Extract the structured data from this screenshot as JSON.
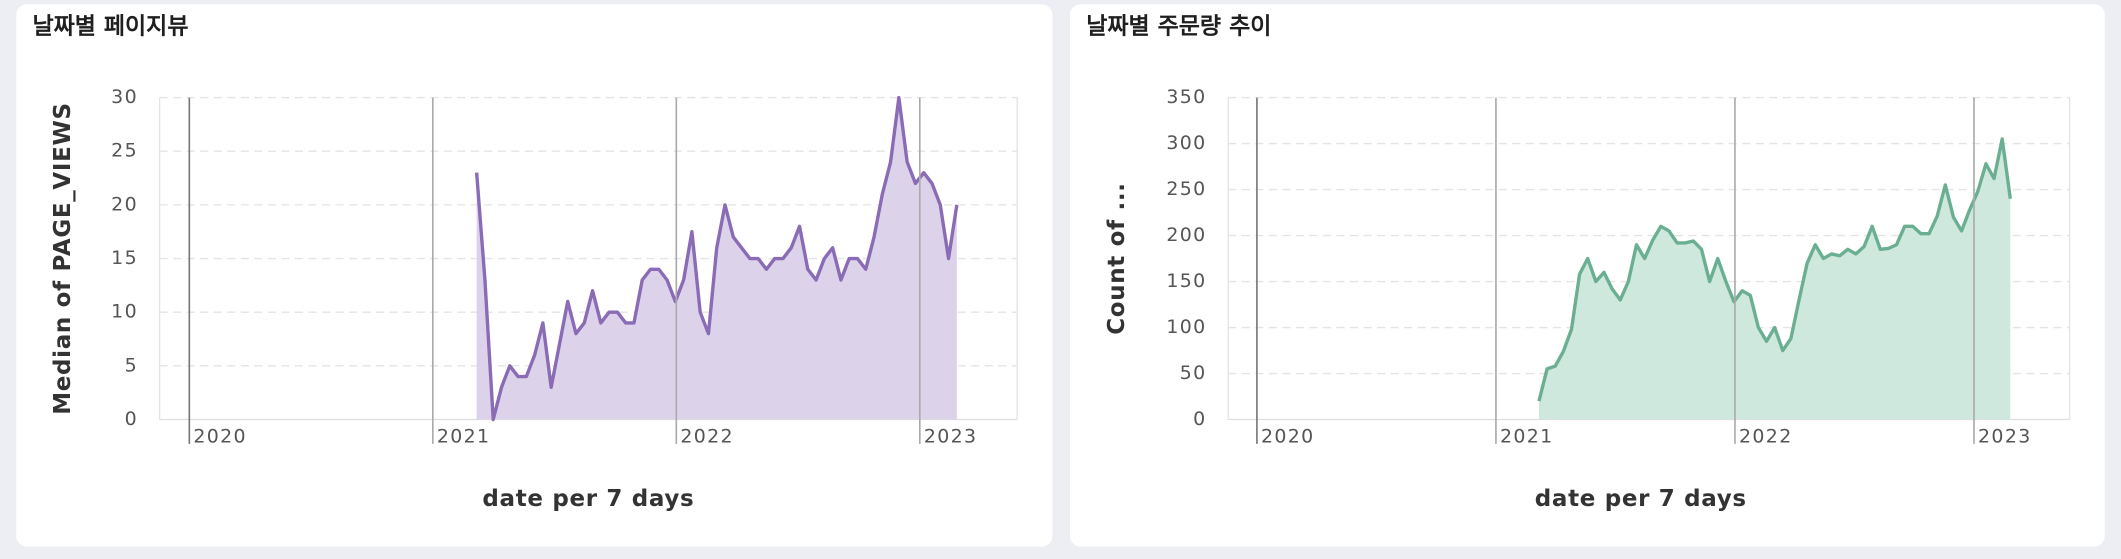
{
  "chart_data": [
    {
      "type": "area",
      "title": "날짜별 페이지뷰",
      "x_label": "date per 7 days",
      "y_label": "Median of PAGE_VIEWS",
      "color": "#8a6bb5",
      "fill_color": "#dcd3ea",
      "x": [
        2021.18,
        2021.214,
        2021.248,
        2021.282,
        2021.316,
        2021.35,
        2021.384,
        2021.418,
        2021.452,
        2021.486,
        2021.52,
        2021.554,
        2021.588,
        2021.622,
        2021.656,
        2021.69,
        2021.724,
        2021.758,
        2021.792,
        2021.826,
        2021.86,
        2021.894,
        2021.928,
        2021.962,
        2021.996,
        2022.03,
        2022.064,
        2022.098,
        2022.132,
        2022.166,
        2022.2,
        2022.234,
        2022.268,
        2022.302,
        2022.336,
        2022.37,
        2022.404,
        2022.438,
        2022.472,
        2022.506,
        2022.54,
        2022.574,
        2022.608,
        2022.642,
        2022.676,
        2022.71,
        2022.744,
        2022.778,
        2022.812,
        2022.846,
        2022.88,
        2022.914,
        2022.948,
        2022.982,
        2023.016,
        2023.05,
        2023.084,
        2023.118,
        2023.152
      ],
      "values": [
        23,
        13,
        0,
        3,
        5,
        4,
        4,
        6,
        9,
        3,
        7,
        11,
        8,
        9,
        12,
        9,
        10,
        10,
        9,
        9,
        13,
        14,
        14,
        13,
        11,
        13,
        17.5,
        10,
        8,
        16,
        20,
        17,
        16,
        15,
        15,
        14,
        15,
        15,
        16,
        18,
        14,
        13,
        15,
        16,
        13,
        15,
        15,
        14,
        17,
        21,
        24,
        30,
        24,
        22,
        23,
        22,
        20,
        15,
        20
      ],
      "xlim": [
        2019.878,
        2023.4
      ],
      "xticks": [
        2020,
        2021,
        2022,
        2023
      ],
      "ylim": [
        0,
        30
      ],
      "yticks": [
        0,
        5,
        10,
        15,
        20,
        25,
        30
      ],
      "grid": true
    },
    {
      "type": "area",
      "title": "날짜별 주문량 추이",
      "x_label": "date per 7 days",
      "y_label": "Count of ...",
      "color": "#6aaf91",
      "fill_color": "#cfe8dd",
      "x": [
        2021.18,
        2021.214,
        2021.248,
        2021.282,
        2021.316,
        2021.35,
        2021.384,
        2021.418,
        2021.452,
        2021.486,
        2021.52,
        2021.554,
        2021.588,
        2021.622,
        2021.656,
        2021.69,
        2021.724,
        2021.758,
        2021.792,
        2021.826,
        2021.86,
        2021.894,
        2021.928,
        2021.962,
        2021.996,
        2022.03,
        2022.064,
        2022.098,
        2022.132,
        2022.166,
        2022.2,
        2022.234,
        2022.268,
        2022.302,
        2022.336,
        2022.37,
        2022.404,
        2022.438,
        2022.472,
        2022.506,
        2022.54,
        2022.574,
        2022.608,
        2022.642,
        2022.676,
        2022.71,
        2022.744,
        2022.778,
        2022.812,
        2022.846,
        2022.88,
        2022.914,
        2022.948,
        2022.982,
        2023.016,
        2023.05,
        2023.084,
        2023.118,
        2023.152
      ],
      "values": [
        20,
        55,
        58,
        74,
        98,
        158,
        175,
        150,
        160,
        142,
        130,
        150,
        190,
        175,
        195,
        210,
        205,
        192,
        192,
        194,
        185,
        150,
        175,
        150,
        128,
        140,
        135,
        100,
        85,
        100,
        75,
        88,
        130,
        170,
        190,
        175,
        180,
        178,
        185,
        180,
        188,
        210,
        185,
        186,
        190,
        210,
        210,
        202,
        202,
        221,
        255,
        220,
        205,
        228,
        248,
        278,
        262,
        305,
        240
      ],
      "xlim": [
        2019.88,
        2023.4
      ],
      "xticks": [
        2020,
        2021,
        2022,
        2023
      ],
      "ylim": [
        0,
        350
      ],
      "yticks": [
        0,
        50,
        100,
        150,
        200,
        250,
        300,
        350
      ],
      "grid": true
    }
  ]
}
